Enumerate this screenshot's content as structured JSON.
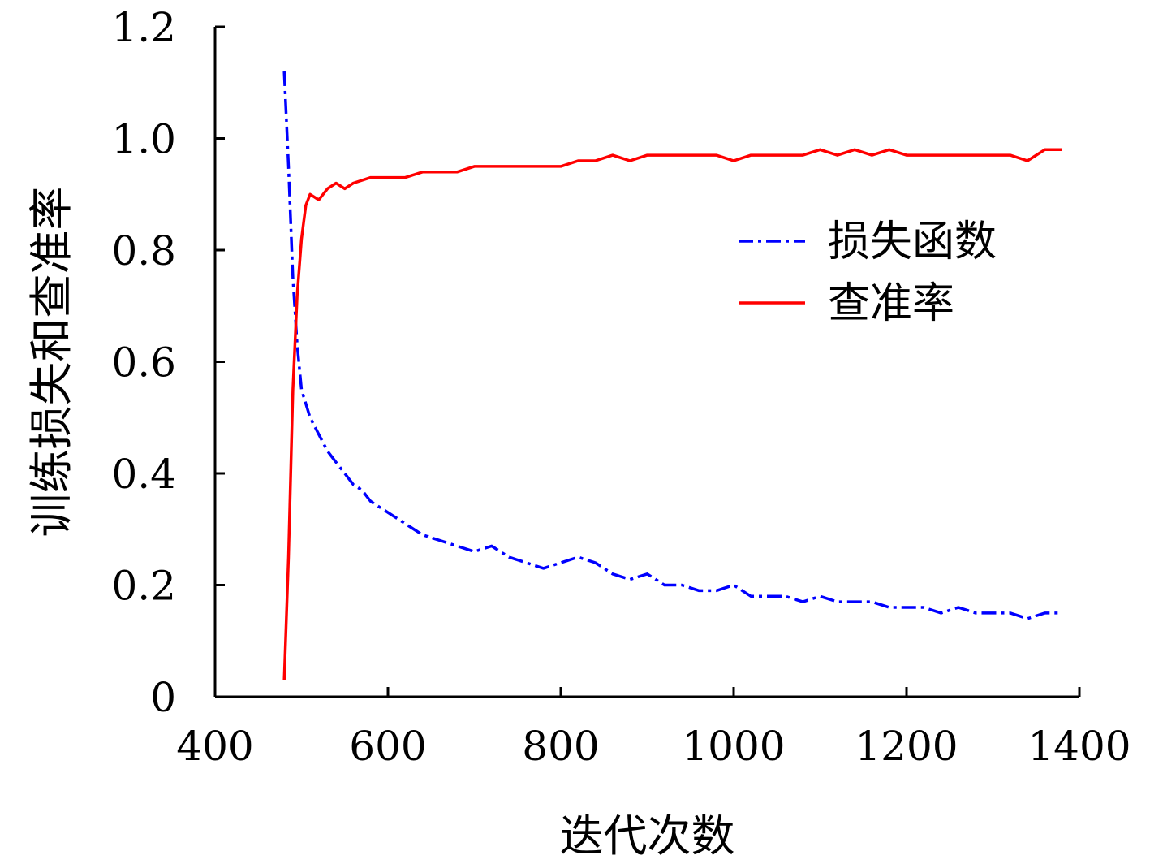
{
  "chart_data": {
    "type": "line",
    "title": "",
    "xlabel": "迭代次数",
    "ylabel": "训练损失和查准率",
    "xlim": [
      400,
      1400
    ],
    "ylim": [
      0,
      1.2
    ],
    "xticks": [
      "400",
      "600",
      "800",
      "1000",
      "1200",
      "1400"
    ],
    "yticks": [
      "0",
      "0.2",
      "0.4",
      "0.6",
      "0.8",
      "1.0",
      "1.2"
    ],
    "legend_position": "right",
    "grid": false,
    "series": [
      {
        "name": "损失函数",
        "color": "#0000ff",
        "style": "dash-dot",
        "x": [
          480,
          485,
          490,
          495,
          500,
          510,
          520,
          530,
          540,
          550,
          560,
          570,
          580,
          590,
          600,
          620,
          640,
          660,
          680,
          700,
          720,
          740,
          760,
          780,
          800,
          820,
          840,
          860,
          880,
          900,
          920,
          940,
          960,
          980,
          1000,
          1020,
          1040,
          1060,
          1080,
          1100,
          1120,
          1140,
          1160,
          1180,
          1200,
          1220,
          1240,
          1260,
          1280,
          1300,
          1320,
          1340,
          1360,
          1380
        ],
        "values": [
          1.12,
          0.95,
          0.75,
          0.63,
          0.55,
          0.5,
          0.47,
          0.44,
          0.42,
          0.4,
          0.38,
          0.37,
          0.35,
          0.34,
          0.33,
          0.31,
          0.29,
          0.28,
          0.27,
          0.26,
          0.27,
          0.25,
          0.24,
          0.23,
          0.24,
          0.25,
          0.24,
          0.22,
          0.21,
          0.22,
          0.2,
          0.2,
          0.19,
          0.19,
          0.2,
          0.18,
          0.18,
          0.18,
          0.17,
          0.18,
          0.17,
          0.17,
          0.17,
          0.16,
          0.16,
          0.16,
          0.15,
          0.16,
          0.15,
          0.15,
          0.15,
          0.14,
          0.15,
          0.15
        ]
      },
      {
        "name": "查准率",
        "color": "#ff0000",
        "style": "solid",
        "x": [
          480,
          485,
          490,
          495,
          500,
          505,
          510,
          520,
          530,
          540,
          550,
          560,
          580,
          600,
          620,
          640,
          660,
          680,
          700,
          720,
          740,
          760,
          780,
          800,
          820,
          840,
          860,
          880,
          900,
          920,
          940,
          960,
          980,
          1000,
          1020,
          1040,
          1060,
          1080,
          1100,
          1120,
          1140,
          1160,
          1180,
          1200,
          1220,
          1240,
          1260,
          1280,
          1300,
          1320,
          1340,
          1360,
          1380
        ],
        "values": [
          0.03,
          0.25,
          0.55,
          0.72,
          0.82,
          0.88,
          0.9,
          0.89,
          0.91,
          0.92,
          0.91,
          0.92,
          0.93,
          0.93,
          0.93,
          0.94,
          0.94,
          0.94,
          0.95,
          0.95,
          0.95,
          0.95,
          0.95,
          0.95,
          0.96,
          0.96,
          0.97,
          0.96,
          0.97,
          0.97,
          0.97,
          0.97,
          0.97,
          0.96,
          0.97,
          0.97,
          0.97,
          0.97,
          0.98,
          0.97,
          0.98,
          0.97,
          0.98,
          0.97,
          0.97,
          0.97,
          0.97,
          0.97,
          0.97,
          0.97,
          0.96,
          0.98,
          0.98
        ]
      }
    ]
  }
}
